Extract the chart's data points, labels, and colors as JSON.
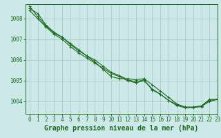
{
  "title": "Graphe pression niveau de la mer (hPa)",
  "background_color": "#cce8e8",
  "grid_color": "#aacccc",
  "line_color": "#1a6b1a",
  "marker_color": "#1a6b1a",
  "xlim": [
    -0.5,
    23
  ],
  "ylim": [
    1003.4,
    1008.7
  ],
  "yticks": [
    1004,
    1005,
    1006,
    1007,
    1008
  ],
  "xticks": [
    0,
    1,
    2,
    3,
    4,
    5,
    6,
    7,
    8,
    9,
    10,
    11,
    12,
    13,
    14,
    15,
    16,
    17,
    18,
    19,
    20,
    21,
    22,
    23
  ],
  "series1": [
    1008.6,
    1008.1,
    1007.65,
    1007.3,
    1007.1,
    1006.8,
    1006.5,
    1006.2,
    1005.9,
    1005.55,
    1005.2,
    1005.1,
    1005.1,
    1005.05,
    1005.1,
    1004.8,
    1004.5,
    1004.2,
    1003.88,
    1003.73,
    1003.73,
    1003.78,
    1004.1,
    1004.1
  ],
  "series2": [
    1008.5,
    1008.25,
    1007.7,
    1007.35,
    1007.1,
    1006.75,
    1006.45,
    1006.2,
    1006.0,
    1005.7,
    1005.4,
    1005.25,
    1005.05,
    1004.95,
    1005.05,
    1004.55,
    1004.35,
    1004.05,
    1003.85,
    1003.72,
    1003.72,
    1003.78,
    1004.05,
    1004.1
  ],
  "series3": [
    1008.4,
    1008.0,
    1007.6,
    1007.25,
    1007.0,
    1006.65,
    1006.35,
    1006.1,
    1005.85,
    1005.6,
    1005.35,
    1005.2,
    1005.0,
    1004.9,
    1005.0,
    1004.6,
    1004.35,
    1004.05,
    1003.8,
    1003.7,
    1003.7,
    1003.75,
    1004.0,
    1004.1
  ],
  "tick_fontsize": 5.5,
  "xlabel_fontsize": 7.0,
  "linewidth": 0.8,
  "markersize": 2.2
}
